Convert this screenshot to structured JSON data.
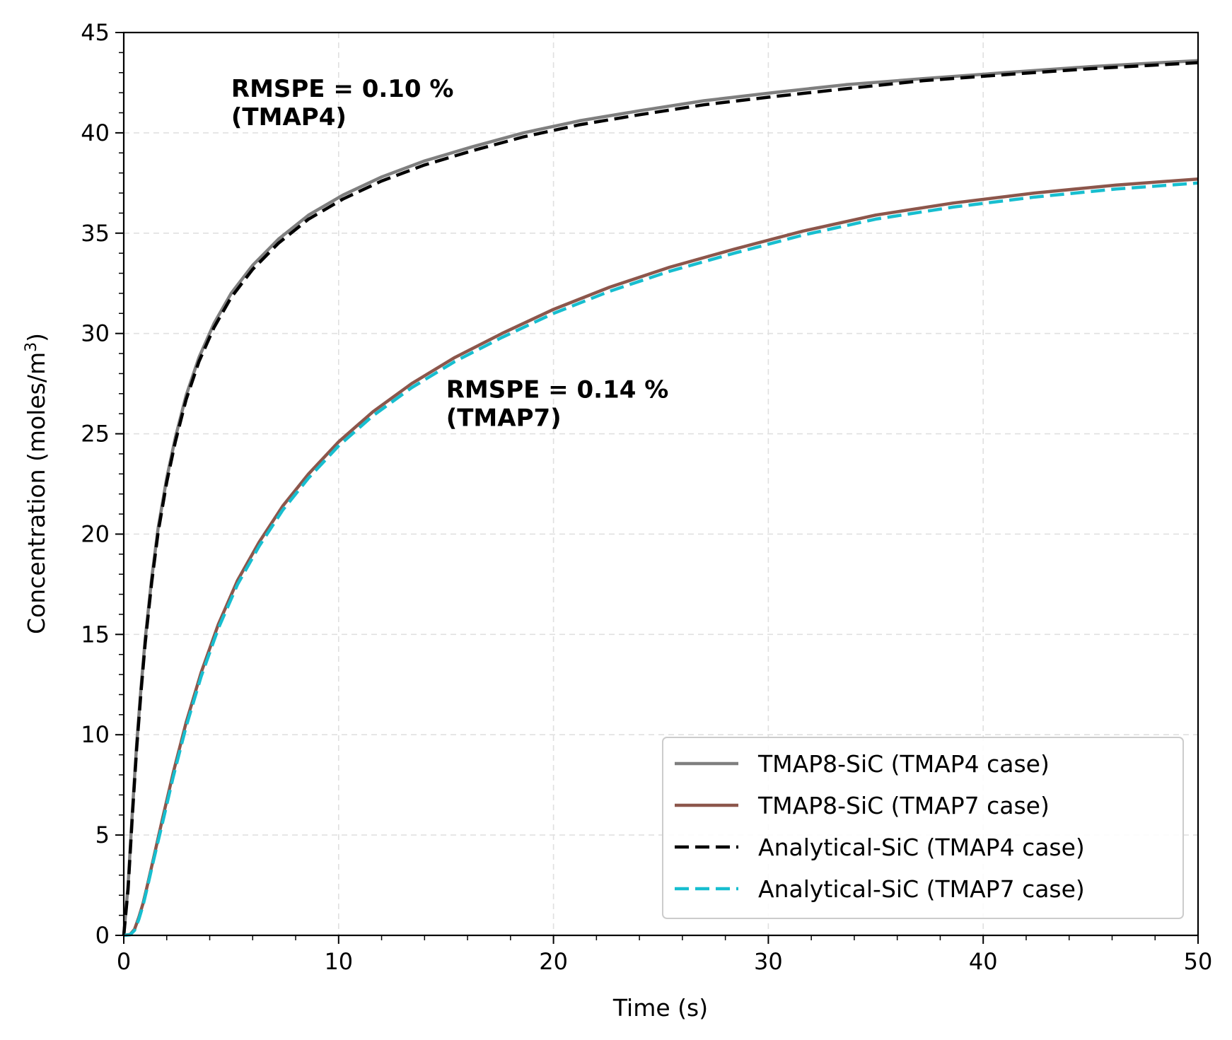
{
  "chart_data": {
    "type": "line",
    "xlabel": "Time (s)",
    "ylabel_main": "Concentration (moles/m",
    "ylabel_sup": "3",
    "ylabel_end": ")",
    "xlim": [
      0,
      50
    ],
    "ylim": [
      0,
      45
    ],
    "x_ticks": [
      0,
      10,
      20,
      30,
      40,
      50
    ],
    "y_ticks": [
      0,
      5,
      10,
      15,
      20,
      25,
      30,
      35,
      40,
      45
    ],
    "x_tick_labels": [
      "0",
      "10",
      "20",
      "30",
      "40",
      "50"
    ],
    "y_tick_labels": [
      "0",
      "5",
      "10",
      "15",
      "20",
      "25",
      "30",
      "35",
      "40",
      "45"
    ],
    "grid": true,
    "legend_position": "lower-right",
    "annotations": [
      {
        "line1": "RMSPE = 0.10 %",
        "line2": "(TMAP4)",
        "x": 5,
        "y": 41.8
      },
      {
        "line1": "RMSPE = 0.14 %",
        "line2": "(TMAP7)",
        "x": 15,
        "y": 26.8
      }
    ],
    "series": [
      {
        "name": "TMAP8-SiC (TMAP4 case)",
        "color": "#7f7f7f",
        "style": "solid",
        "x": [
          0,
          0.2,
          0.4,
          0.6,
          0.8,
          1.0,
          1.3,
          1.6,
          2.0,
          2.4,
          2.9,
          3.5,
          4.2,
          5.0,
          6.0,
          7.2,
          8.6,
          10.2,
          12.0,
          14.0,
          16.2,
          18.6,
          21.2,
          24.0,
          27.0,
          30.2,
          33.6,
          37.2,
          41.0,
          45.0,
          50.0
        ],
        "values": [
          0,
          2.5,
          6.2,
          9.5,
          12.3,
          14.8,
          17.8,
          20.3,
          22.8,
          24.8,
          26.9,
          28.8,
          30.5,
          32.0,
          33.4,
          34.7,
          35.9,
          36.9,
          37.8,
          38.6,
          39.3,
          40.0,
          40.6,
          41.1,
          41.6,
          42.0,
          42.4,
          42.7,
          43.0,
          43.3,
          43.6
        ]
      },
      {
        "name": "TMAP8-SiC (TMAP7 case)",
        "color": "#8c564b",
        "style": "solid",
        "x": [
          0,
          0.3,
          0.5,
          0.7,
          0.9,
          1.1,
          1.4,
          1.8,
          2.3,
          2.9,
          3.6,
          4.4,
          5.3,
          6.3,
          7.4,
          8.6,
          10.0,
          11.6,
          13.4,
          15.4,
          17.6,
          20.0,
          22.6,
          25.4,
          28.4,
          31.6,
          35.0,
          38.6,
          42.4,
          46.2,
          50.0
        ],
        "values": [
          0,
          0.05,
          0.3,
          0.9,
          1.6,
          2.5,
          3.9,
          5.8,
          8.1,
          10.6,
          13.1,
          15.5,
          17.7,
          19.6,
          21.4,
          23.0,
          24.6,
          26.1,
          27.5,
          28.8,
          30.0,
          31.2,
          32.3,
          33.3,
          34.2,
          35.1,
          35.9,
          36.5,
          37.0,
          37.4,
          37.7
        ]
      },
      {
        "name": "Analytical-SiC (TMAP4 case)",
        "color": "#000000",
        "style": "dashed",
        "x": [
          0,
          0.2,
          0.4,
          0.6,
          0.8,
          1.0,
          1.3,
          1.6,
          2.0,
          2.4,
          2.9,
          3.5,
          4.2,
          5.0,
          6.0,
          7.2,
          8.6,
          10.2,
          12.0,
          14.0,
          16.2,
          18.6,
          21.2,
          24.0,
          27.0,
          30.2,
          33.6,
          37.2,
          41.0,
          45.0,
          50.0
        ],
        "values": [
          0,
          2.3,
          6.0,
          9.3,
          12.1,
          14.6,
          17.6,
          20.1,
          22.6,
          24.6,
          26.7,
          28.6,
          30.3,
          31.8,
          33.2,
          34.5,
          35.7,
          36.7,
          37.6,
          38.4,
          39.1,
          39.8,
          40.4,
          40.9,
          41.4,
          41.8,
          42.2,
          42.6,
          42.9,
          43.2,
          43.5
        ]
      },
      {
        "name": "Analytical-SiC (TMAP7 case)",
        "color": "#17becf",
        "style": "dashed",
        "x": [
          0,
          0.3,
          0.5,
          0.7,
          0.9,
          1.1,
          1.4,
          1.8,
          2.3,
          2.9,
          3.6,
          4.4,
          5.3,
          6.3,
          7.4,
          8.6,
          10.0,
          11.6,
          13.4,
          15.4,
          17.6,
          20.0,
          22.6,
          25.4,
          28.4,
          31.6,
          35.0,
          38.6,
          42.4,
          46.2,
          50.0
        ],
        "values": [
          0,
          0.03,
          0.25,
          0.8,
          1.5,
          2.4,
          3.8,
          5.6,
          7.9,
          10.4,
          12.9,
          15.3,
          17.5,
          19.4,
          21.2,
          22.8,
          24.4,
          25.9,
          27.3,
          28.6,
          29.8,
          31.0,
          32.1,
          33.1,
          34.0,
          34.9,
          35.7,
          36.3,
          36.8,
          37.2,
          37.5
        ]
      }
    ]
  }
}
